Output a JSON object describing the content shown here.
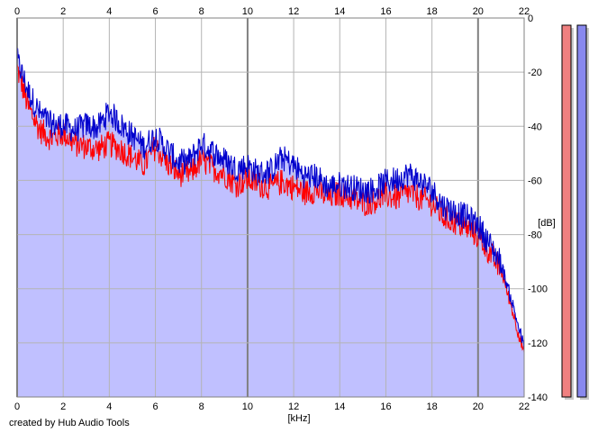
{
  "chart_data": {
    "type": "area",
    "title": "",
    "xlabel": "[kHz]",
    "ylabel": "[dB]",
    "xlim": [
      0,
      22
    ],
    "ylim": [
      -140,
      0
    ],
    "x_ticks": [
      "0",
      "2",
      "4",
      "6",
      "8",
      "10",
      "12",
      "14",
      "16",
      "18",
      "20",
      "22"
    ],
    "y_ticks": [
      "0",
      "-20",
      "-40",
      "-60",
      "-80",
      "-100",
      "-120",
      "-140"
    ],
    "grid": true,
    "colors": {
      "fill": "#c0c0ff",
      "fill_edge": "#9d9dff",
      "left": "#ff0000",
      "right": "#0000cc",
      "grid": "#b4b4b4",
      "grid_major": "#808080",
      "meter_left": "#f08080",
      "meter_right": "#8888ee"
    },
    "x": [
      0,
      0.5,
      1,
      1.5,
      2,
      2.5,
      3,
      3.5,
      4,
      4.5,
      5,
      5.5,
      6,
      6.5,
      7,
      7.5,
      8,
      8.5,
      9,
      9.5,
      10,
      10.5,
      11,
      11.5,
      12,
      12.5,
      13,
      13.5,
      14,
      14.5,
      15,
      15.5,
      16,
      16.5,
      17,
      17.5,
      18,
      18.5,
      19,
      19.5,
      20,
      20.5,
      21,
      21.5,
      22
    ],
    "series": [
      {
        "values": [
          -18,
          -33,
          -41,
          -44,
          -42,
          -46,
          -47,
          -48,
          -46,
          -48,
          -51,
          -54,
          -47,
          -53,
          -57,
          -57,
          -52,
          -55,
          -57,
          -61,
          -59,
          -61,
          -62,
          -60,
          -62,
          -64,
          -63,
          -66,
          -64,
          -66,
          -68,
          -67,
          -65,
          -66,
          -64,
          -66,
          -68,
          -73,
          -75,
          -77,
          -80,
          -86,
          -93,
          -108,
          -124
        ]
      },
      {
        "values": [
          -16,
          -28,
          -36,
          -40,
          -40,
          -42,
          -40,
          -41,
          -35,
          -40,
          -44,
          -48,
          -44,
          -49,
          -54,
          -53,
          -47,
          -50,
          -53,
          -56,
          -55,
          -58,
          -57,
          -52,
          -55,
          -59,
          -59,
          -63,
          -62,
          -63,
          -64,
          -64,
          -61,
          -60,
          -58,
          -61,
          -64,
          -70,
          -72,
          -74,
          -77,
          -84,
          -91,
          -106,
          -122
        ]
      }
    ],
    "meters": {
      "ylim": [
        -140,
        0
      ],
      "left": 0,
      "right": 0
    }
  },
  "credit": "created by Hub Audio Tools"
}
